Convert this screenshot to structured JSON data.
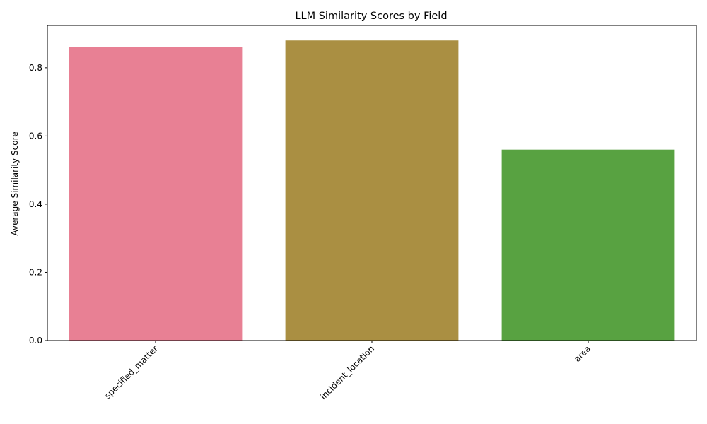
{
  "chart_data": {
    "type": "bar",
    "title": "LLM Similarity Scores by Field",
    "xlabel": "",
    "ylabel": "Average Similarity Score",
    "categories": [
      "specified_matter",
      "incident_location",
      "area"
    ],
    "values": [
      0.86,
      0.88,
      0.56
    ],
    "colors": [
      "#e88094",
      "#aa8f42",
      "#58a241"
    ],
    "ylim": [
      0,
      0.924
    ],
    "yticks": [
      0.0,
      0.2,
      0.4,
      0.6,
      0.8
    ],
    "ytick_labels": [
      "0.0",
      "0.2",
      "0.4",
      "0.6",
      "0.8"
    ],
    "xtick_rotation": 45,
    "grid": false,
    "legend": false
  }
}
